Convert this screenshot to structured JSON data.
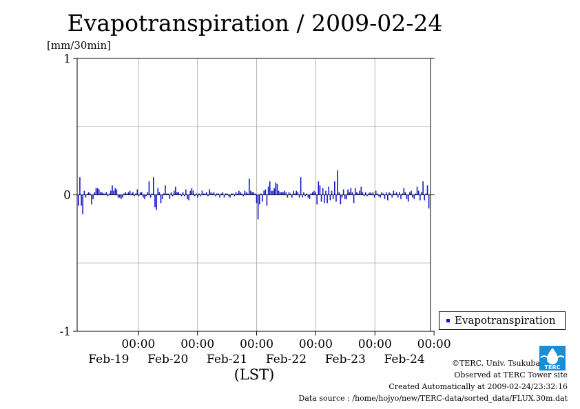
{
  "title": "Evapotranspiration / 2009-02-24",
  "legend": {
    "label": "Evapotranspiration"
  },
  "footer": {
    "credit": "©TERC, Univ. Tsukuba",
    "observed": "Observed at TERC Tower site",
    "created": "Created Automatically at 2009-02-24/23:32:16",
    "source": "Data source : /home/hojyo/new/TERC-data/sorted_data/FLUX.30m.dat",
    "logo_text": "TERC"
  },
  "colors": {
    "series": "#1515c8",
    "grid": "#b4b4b4",
    "axis": "#000000"
  },
  "chart_data": {
    "type": "bar",
    "title": "Evapotranspiration / 2009-02-24",
    "ylabel": "[mm/30min]",
    "xlabel": "(LST)",
    "ylim": [
      -1,
      1
    ],
    "yticks": [
      {
        "value": 1,
        "label": "1"
      },
      {
        "value": 0,
        "label": "0"
      },
      {
        "value": -1,
        "label": "-1"
      }
    ],
    "yticks_minor": [
      0.5,
      -0.5
    ],
    "xlim": [
      0,
      6
    ],
    "xticks": [
      {
        "value": 1,
        "time": "00:00",
        "date": "Feb-19"
      },
      {
        "value": 2,
        "time": "00:00",
        "date": "Feb-20"
      },
      {
        "value": 3,
        "time": "00:00",
        "date": "Feb-21"
      },
      {
        "value": 4,
        "time": "00:00",
        "date": "Feb-22"
      },
      {
        "value": 5,
        "time": "00:00",
        "date": "Feb-23"
      },
      {
        "value": 6,
        "time": "00:00",
        "date": "Feb-24"
      }
    ],
    "grid": true,
    "legend_position": "bottom-right outside",
    "series": [
      {
        "name": "Evapotranspiration",
        "color": "#1515c8",
        "values": [
          -0.08,
          0.13,
          -0.08,
          -0.14,
          0.03,
          -0.02,
          0.01,
          0.02,
          0.01,
          -0.07,
          -0.03,
          0.02,
          0.05,
          0.05,
          0.04,
          0.02,
          0.02,
          0.01,
          0.01,
          0.02,
          -0.01,
          0.01,
          0.03,
          0.07,
          0.03,
          0.05,
          0.04,
          -0.02,
          -0.02,
          -0.03,
          -0.02,
          0.01,
          0.02,
          0.01,
          0.02,
          0.03,
          0.01,
          0.02,
          -0.01,
          0.01,
          0.04,
          -0.01,
          0.02,
          0.02,
          -0.02,
          -0.03,
          -0.01,
          0.02,
          0.1,
          -0.02,
          0.01,
          0.13,
          -0.09,
          -0.11,
          0.05,
          0.02,
          -0.06,
          -0.03,
          0.01,
          0.07,
          0.01,
          0.01,
          -0.03,
          0.02,
          -0.01,
          0.03,
          0.06,
          0.02,
          0.02,
          0.01,
          -0.01,
          0.02,
          -0.01,
          0.04,
          -0.03,
          -0.04,
          0.03,
          0.05,
          0.03,
          -0.01,
          0.01,
          -0.02,
          0.01,
          -0.01,
          0.03,
          0.01,
          0.01,
          0.02,
          -0.01,
          0.04,
          0.02,
          0.01,
          0.02,
          -0.01,
          0.01,
          0.01,
          -0.02,
          0.01,
          0.02,
          -0.02,
          0.01,
          0.01,
          -0.01,
          -0.02,
          0.01,
          0.01,
          -0.01,
          0.02,
          0.01,
          0.03,
          0.02,
          0.01,
          -0.01,
          0.03,
          0.02,
          0.01,
          0.12,
          0.03,
          0.02,
          0.02,
          0.01,
          -0.06,
          -0.18,
          -0.07,
          0.01,
          -0.05,
          0.03,
          0.04,
          -0.08,
          0.06,
          0.1,
          0.03,
          0.03,
          0.05,
          0.09,
          0.08,
          0.03,
          0.02,
          0.02,
          0.02,
          0.03,
          0.02,
          -0.02,
          0.02,
          0.01,
          -0.02,
          0.03,
          0.01,
          0.03,
          0.02,
          -0.02,
          0.13,
          -0.02,
          0.02,
          -0.01,
          0.01,
          -0.02,
          -0.03,
          0.01,
          0.02,
          0.03,
          0.02,
          -0.07,
          0.1,
          0.07,
          -0.05,
          0.05,
          -0.06,
          0.03,
          -0.06,
          0.06,
          -0.04,
          0.03,
          -0.03,
          0.1,
          -0.05,
          0.18,
          0.02,
          -0.07,
          -0.02,
          0.04,
          -0.03,
          -0.03,
          0.04,
          0.02,
          0.05,
          0.02,
          -0.06,
          0.05,
          0.02,
          0.01,
          0.03,
          0.06,
          0.02,
          -0.01,
          0.02,
          -0.01,
          0.01,
          0.02,
          0.01,
          0.02,
          -0.02,
          0.03,
          0.01,
          -0.01,
          -0.02,
          0.02,
          0.01,
          -0.03,
          0.02,
          -0.04,
          0.02,
          0.01,
          -0.02,
          0.03,
          0.01,
          0.02,
          -0.02,
          0.02,
          -0.03,
          0.01,
          0.05,
          0.02,
          -0.03,
          -0.05,
          0.02,
          0.03,
          -0.02,
          -0.03,
          0.01,
          0.06,
          0.03,
          -0.04,
          0.02,
          0.1,
          -0.04,
          0.01,
          0.07,
          -0.1
        ]
      }
    ]
  }
}
